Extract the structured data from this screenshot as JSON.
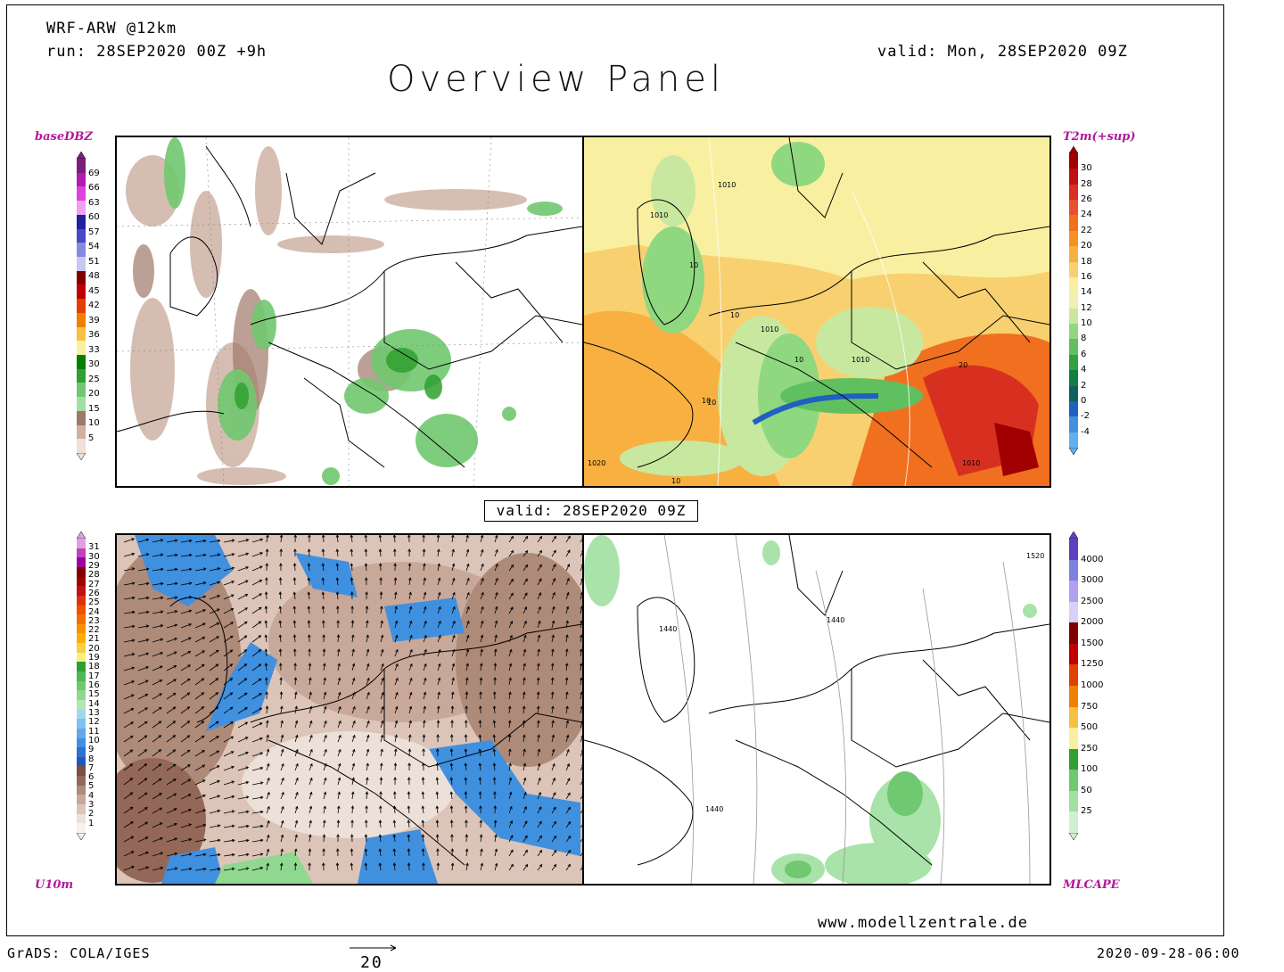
{
  "header": {
    "model": "WRF-ARW @12km",
    "run": "run: 28SEP2020 00Z +9h",
    "valid_top": "valid: Mon, 28SEP2020 09Z",
    "title": "Overview Panel"
  },
  "panels": {
    "top_left_label": "baseDBZ",
    "top_right_label": "T2m(+sup)",
    "bottom_left_label": "U10m",
    "bottom_right_label": "MLCAPE",
    "center_valid": "valid: 28SEP2020 09Z"
  },
  "colorbars": {
    "dbz": {
      "ticks": [
        "69",
        "66",
        "63",
        "60",
        "57",
        "54",
        "51",
        "48",
        "45",
        "42",
        "39",
        "36",
        "33",
        "30",
        "25",
        "20",
        "15",
        "10",
        "5"
      ],
      "colors": [
        "#7a1f7a",
        "#b01cb0",
        "#e040e0",
        "#f0a0f0",
        "#2020a0",
        "#4848c8",
        "#8888e0",
        "#c8c8f0",
        "#800000",
        "#c00000",
        "#e04000",
        "#f08000",
        "#f8c040",
        "#f8f0a0",
        "#008000",
        "#30a030",
        "#70c870",
        "#a0e0a0",
        "#a07868",
        "#d0b0a0",
        "#f0e0d8"
      ]
    },
    "t2m": {
      "ticks": [
        "30",
        "28",
        "26",
        "24",
        "22",
        "20",
        "18",
        "16",
        "14",
        "12",
        "10",
        "8",
        "6",
        "4",
        "2",
        "0",
        "-2",
        "-4"
      ],
      "colors": [
        "#a00000",
        "#c01010",
        "#d83020",
        "#e85030",
        "#f07020",
        "#f89020",
        "#f8b040",
        "#f8d070",
        "#f8f0a0",
        "#f0f0b0",
        "#c8e8a0",
        "#90d880",
        "#60c060",
        "#30a040",
        "#108040",
        "#106060",
        "#2060c0",
        "#4090e0",
        "#60b0f0"
      ]
    },
    "wind": {
      "ticks": [
        "31",
        "30",
        "29",
        "28",
        "27",
        "26",
        "25",
        "24",
        "23",
        "22",
        "21",
        "20",
        "19",
        "18",
        "17",
        "16",
        "15",
        "14",
        "13",
        "12",
        "11",
        "10",
        "9",
        "8",
        "7",
        "6",
        "5",
        "4",
        "3",
        "2",
        "1"
      ],
      "colors": [
        "#e0a0e0",
        "#c040c0",
        "#a000a0",
        "#800000",
        "#a00000",
        "#c01010",
        "#e03010",
        "#f05000",
        "#f07000",
        "#f89000",
        "#f8b000",
        "#f8d040",
        "#f8f080",
        "#30a030",
        "#50b850",
        "#70c870",
        "#90d890",
        "#b0e8b0",
        "#a0d8f0",
        "#80c0f0",
        "#60a8e8",
        "#4090e0",
        "#3070d0",
        "#2058c0",
        "#7a5040",
        "#946858",
        "#ae8a78",
        "#c8a898",
        "#dcc4b8",
        "#ece0d8",
        "#f8f0ec"
      ]
    },
    "cape": {
      "ticks": [
        "4000",
        "3000",
        "2500",
        "2000",
        "1500",
        "1250",
        "1000",
        "750",
        "500",
        "250",
        "100",
        "50",
        "25"
      ],
      "colors": [
        "#6040c0",
        "#8080e0",
        "#b0a0f0",
        "#d8d0f8",
        "#800000",
        "#c00000",
        "#e04000",
        "#f08000",
        "#f8c040",
        "#f8f0a0",
        "#30a030",
        "#70c870",
        "#a0e0a0",
        "#d0f0d0"
      ]
    }
  },
  "contour_labels": {
    "t2m": [
      "1010",
      "1010",
      "10",
      "10",
      "1010",
      "10",
      "1010",
      "10",
      "10",
      "20",
      "1010",
      "1020",
      "10"
    ],
    "cape": [
      "1520",
      "1440",
      "1440",
      "1440"
    ]
  },
  "footer": {
    "url": "www.modellzentrale.de",
    "grads": "GrADS: COLA/IGES",
    "ref_vector": "20",
    "timestamp": "2020-09-28-06:00"
  }
}
